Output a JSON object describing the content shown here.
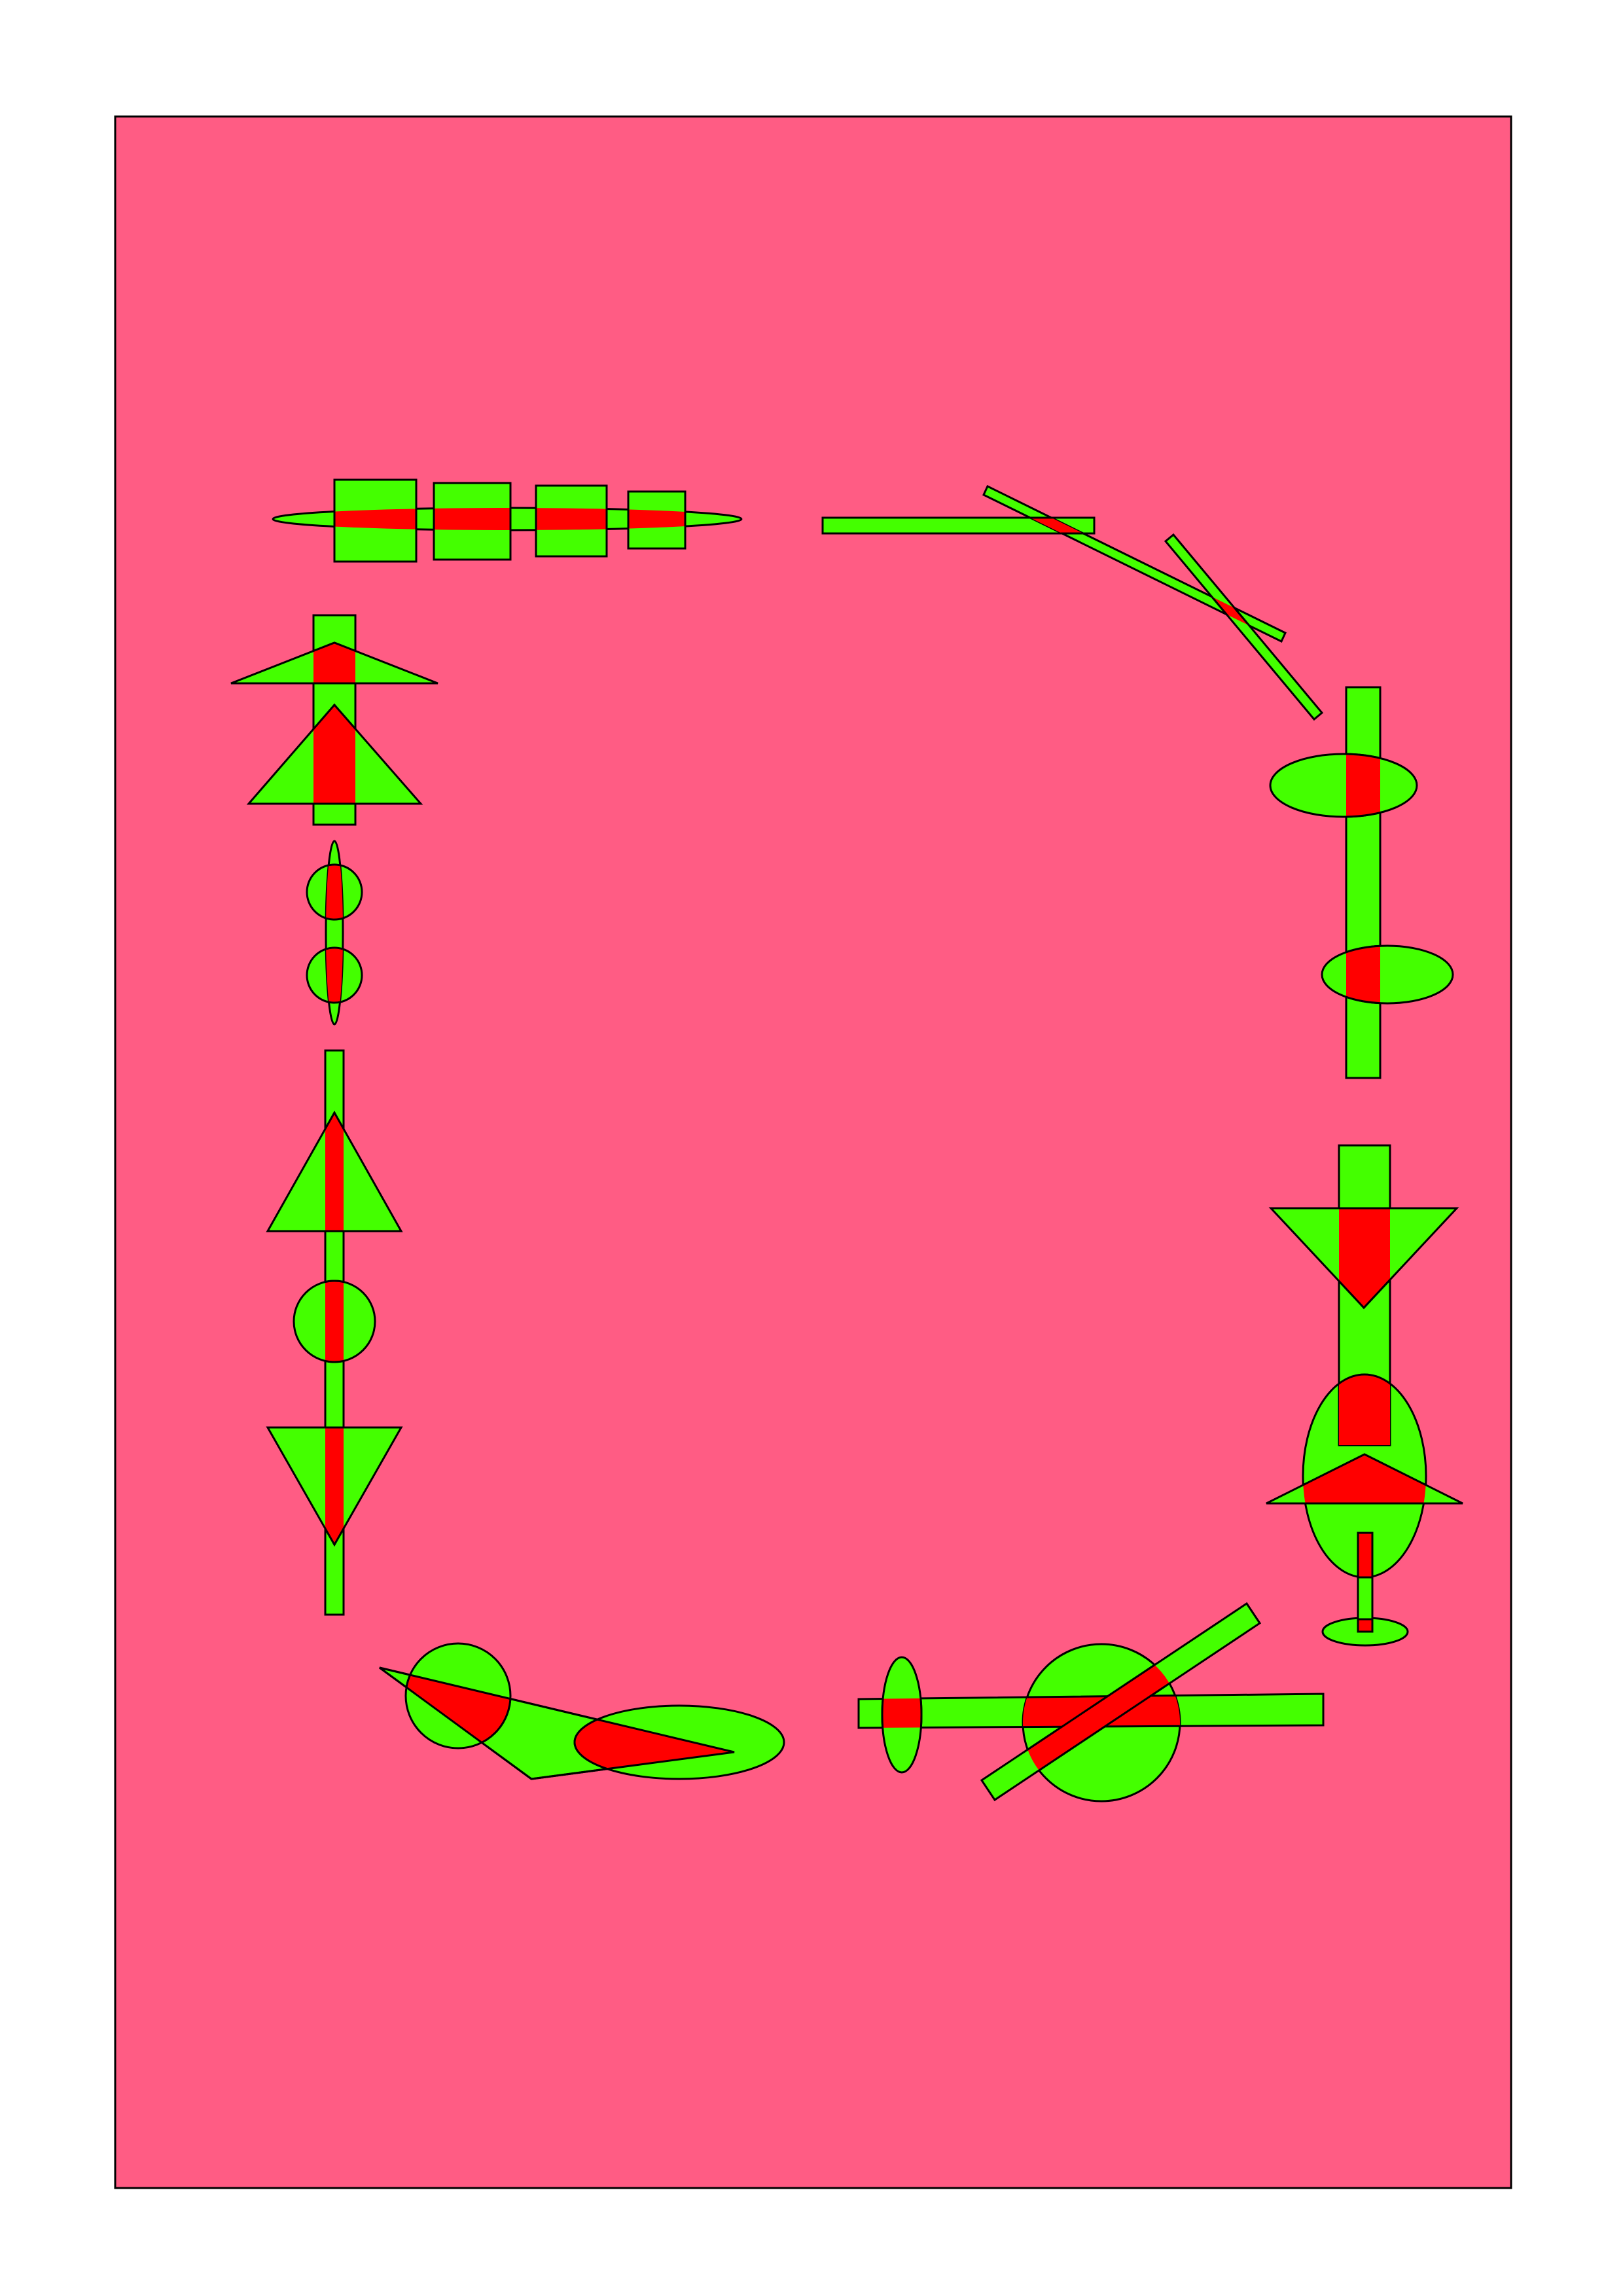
{
  "colors": {
    "page": "#ffffff",
    "panel": "#ff5c84",
    "shape": "#44ff00",
    "overlap": "#ff0000",
    "stroke": "#000000"
  },
  "groups": [
    {
      "name": "top-left-bar-group"
    },
    {
      "name": "top-right-sticks-group"
    },
    {
      "name": "right-upper-ellipses-group"
    },
    {
      "name": "right-lower-arrow-group"
    },
    {
      "name": "bottom-right-cross-group"
    },
    {
      "name": "bottom-left-triangle-group"
    },
    {
      "name": "left-lower-arrow-group"
    },
    {
      "name": "left-middle-ellipses-group"
    },
    {
      "name": "left-upper-arrow-group"
    }
  ]
}
